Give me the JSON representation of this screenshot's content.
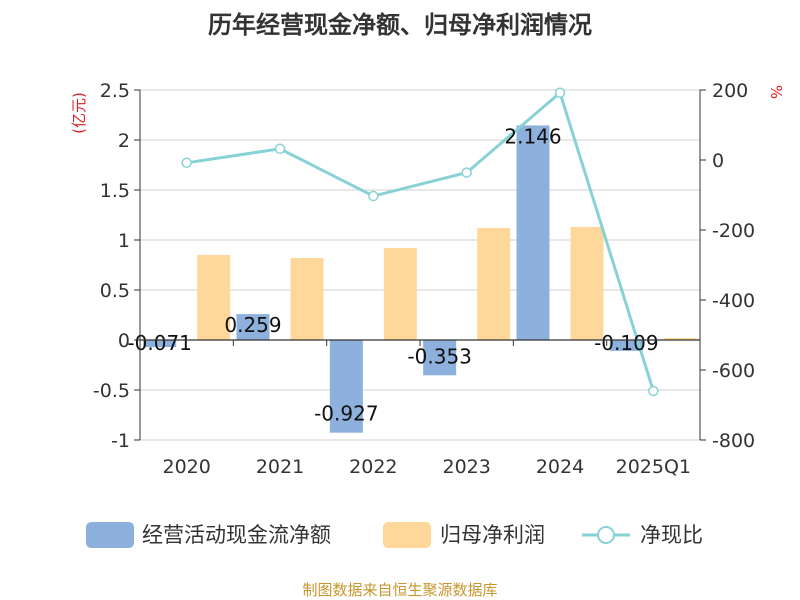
{
  "chart_data": {
    "type": "bar",
    "title": "历年经营现金净额、归母净利润情况",
    "categories": [
      "2020",
      "2021",
      "2022",
      "2023",
      "2024",
      "2025Q1"
    ],
    "y_left": {
      "label": "(亿元)",
      "ylim": [
        -1,
        2.5
      ],
      "ticks": [
        "2.5",
        "2",
        "1.5",
        "1",
        "0.5",
        "0",
        "-0.5",
        "-1"
      ],
      "tick_values": [
        2.5,
        2,
        1.5,
        1,
        0.5,
        0,
        -0.5,
        -1
      ]
    },
    "y_right": {
      "label": "%",
      "ylim": [
        -800,
        200
      ],
      "ticks": [
        "200",
        "0",
        "-200",
        "-400",
        "-600",
        "-800"
      ],
      "tick_values": [
        200,
        0,
        -200,
        -400,
        -600,
        -800
      ]
    },
    "series": [
      {
        "name": "经营活动现金流净额",
        "type": "bar",
        "axis": "left",
        "color": "#8eb0dc",
        "values": [
          -0.071,
          0.259,
          -0.927,
          -0.353,
          2.146,
          -0.109
        ],
        "labels": [
          "-0.071",
          "0.259",
          "-0.927",
          "-0.353",
          "2.146",
          "-0.109"
        ]
      },
      {
        "name": "归母净利润",
        "type": "bar",
        "axis": "left",
        "color": "#fed89a",
        "values": [
          0.85,
          0.82,
          0.92,
          1.12,
          1.13,
          0.02
        ]
      },
      {
        "name": "净现比",
        "type": "line",
        "axis": "right",
        "color": "#88d2d6",
        "values": [
          -8,
          32,
          -103,
          -36,
          192,
          -660
        ]
      }
    ],
    "source": "制图数据来自恒生聚源数据库"
  }
}
